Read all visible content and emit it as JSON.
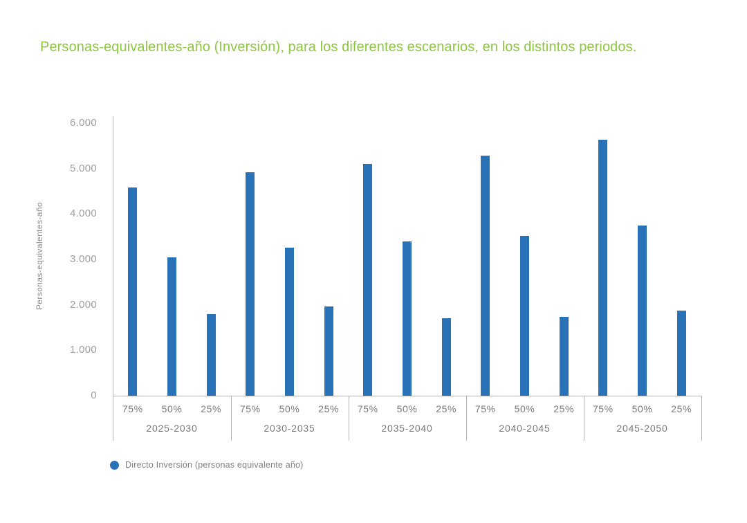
{
  "title": "Personas-equivalentes-año (Inversión), para los diferentes escenarios, en los distintos periodos.",
  "chart_data": {
    "type": "bar",
    "title": "Personas-equivalentes-año (Inversión), para los diferentes escenarios, en los distintos periodos.",
    "xlabel": "",
    "ylabel": "Personas-equivalentes-año",
    "ylim": [
      0,
      6000
    ],
    "grid": false,
    "legend_position": "bottom-left",
    "y_ticks": [
      0,
      1000,
      2000,
      3000,
      4000,
      5000,
      6000
    ],
    "y_tick_labels": [
      "0",
      "1.000",
      "2.000",
      "3.000",
      "4.000",
      "5.000",
      "6.000"
    ],
    "scenario_labels": [
      "75%",
      "50%",
      "25%"
    ],
    "groups": [
      {
        "period": "2025-2030",
        "scenarios": [
          "75%",
          "50%",
          "25%"
        ],
        "values": [
          4590,
          3040,
          1800
        ]
      },
      {
        "period": "2030-2035",
        "scenarios": [
          "75%",
          "50%",
          "25%"
        ],
        "values": [
          4920,
          3260,
          1960
        ]
      },
      {
        "period": "2035-2040",
        "scenarios": [
          "75%",
          "50%",
          "25%"
        ],
        "values": [
          5100,
          3400,
          1710
        ]
      },
      {
        "period": "2040-2045",
        "scenarios": [
          "75%",
          "50%",
          "25%"
        ],
        "values": [
          5280,
          3520,
          1730
        ]
      },
      {
        "period": "2045-2050",
        "scenarios": [
          "75%",
          "50%",
          "25%"
        ],
        "values": [
          5640,
          3750,
          1870
        ]
      }
    ],
    "series": [
      {
        "name": "Directo Inversión (personas equivalente año)",
        "values": [
          4590,
          3040,
          1800,
          4920,
          3260,
          1960,
          5100,
          3400,
          1710,
          5280,
          3520,
          1730,
          5640,
          3750,
          1870
        ]
      }
    ],
    "legend": [
      "Directo Inversión (personas equivalente año)"
    ],
    "colors": {
      "bar": "#2A72B8",
      "title": "#8DC63F",
      "axis": "#B2B2B4",
      "tick_label": "#9D9EA0",
      "category_label": "#77787B",
      "legend_text": "#808184"
    }
  }
}
